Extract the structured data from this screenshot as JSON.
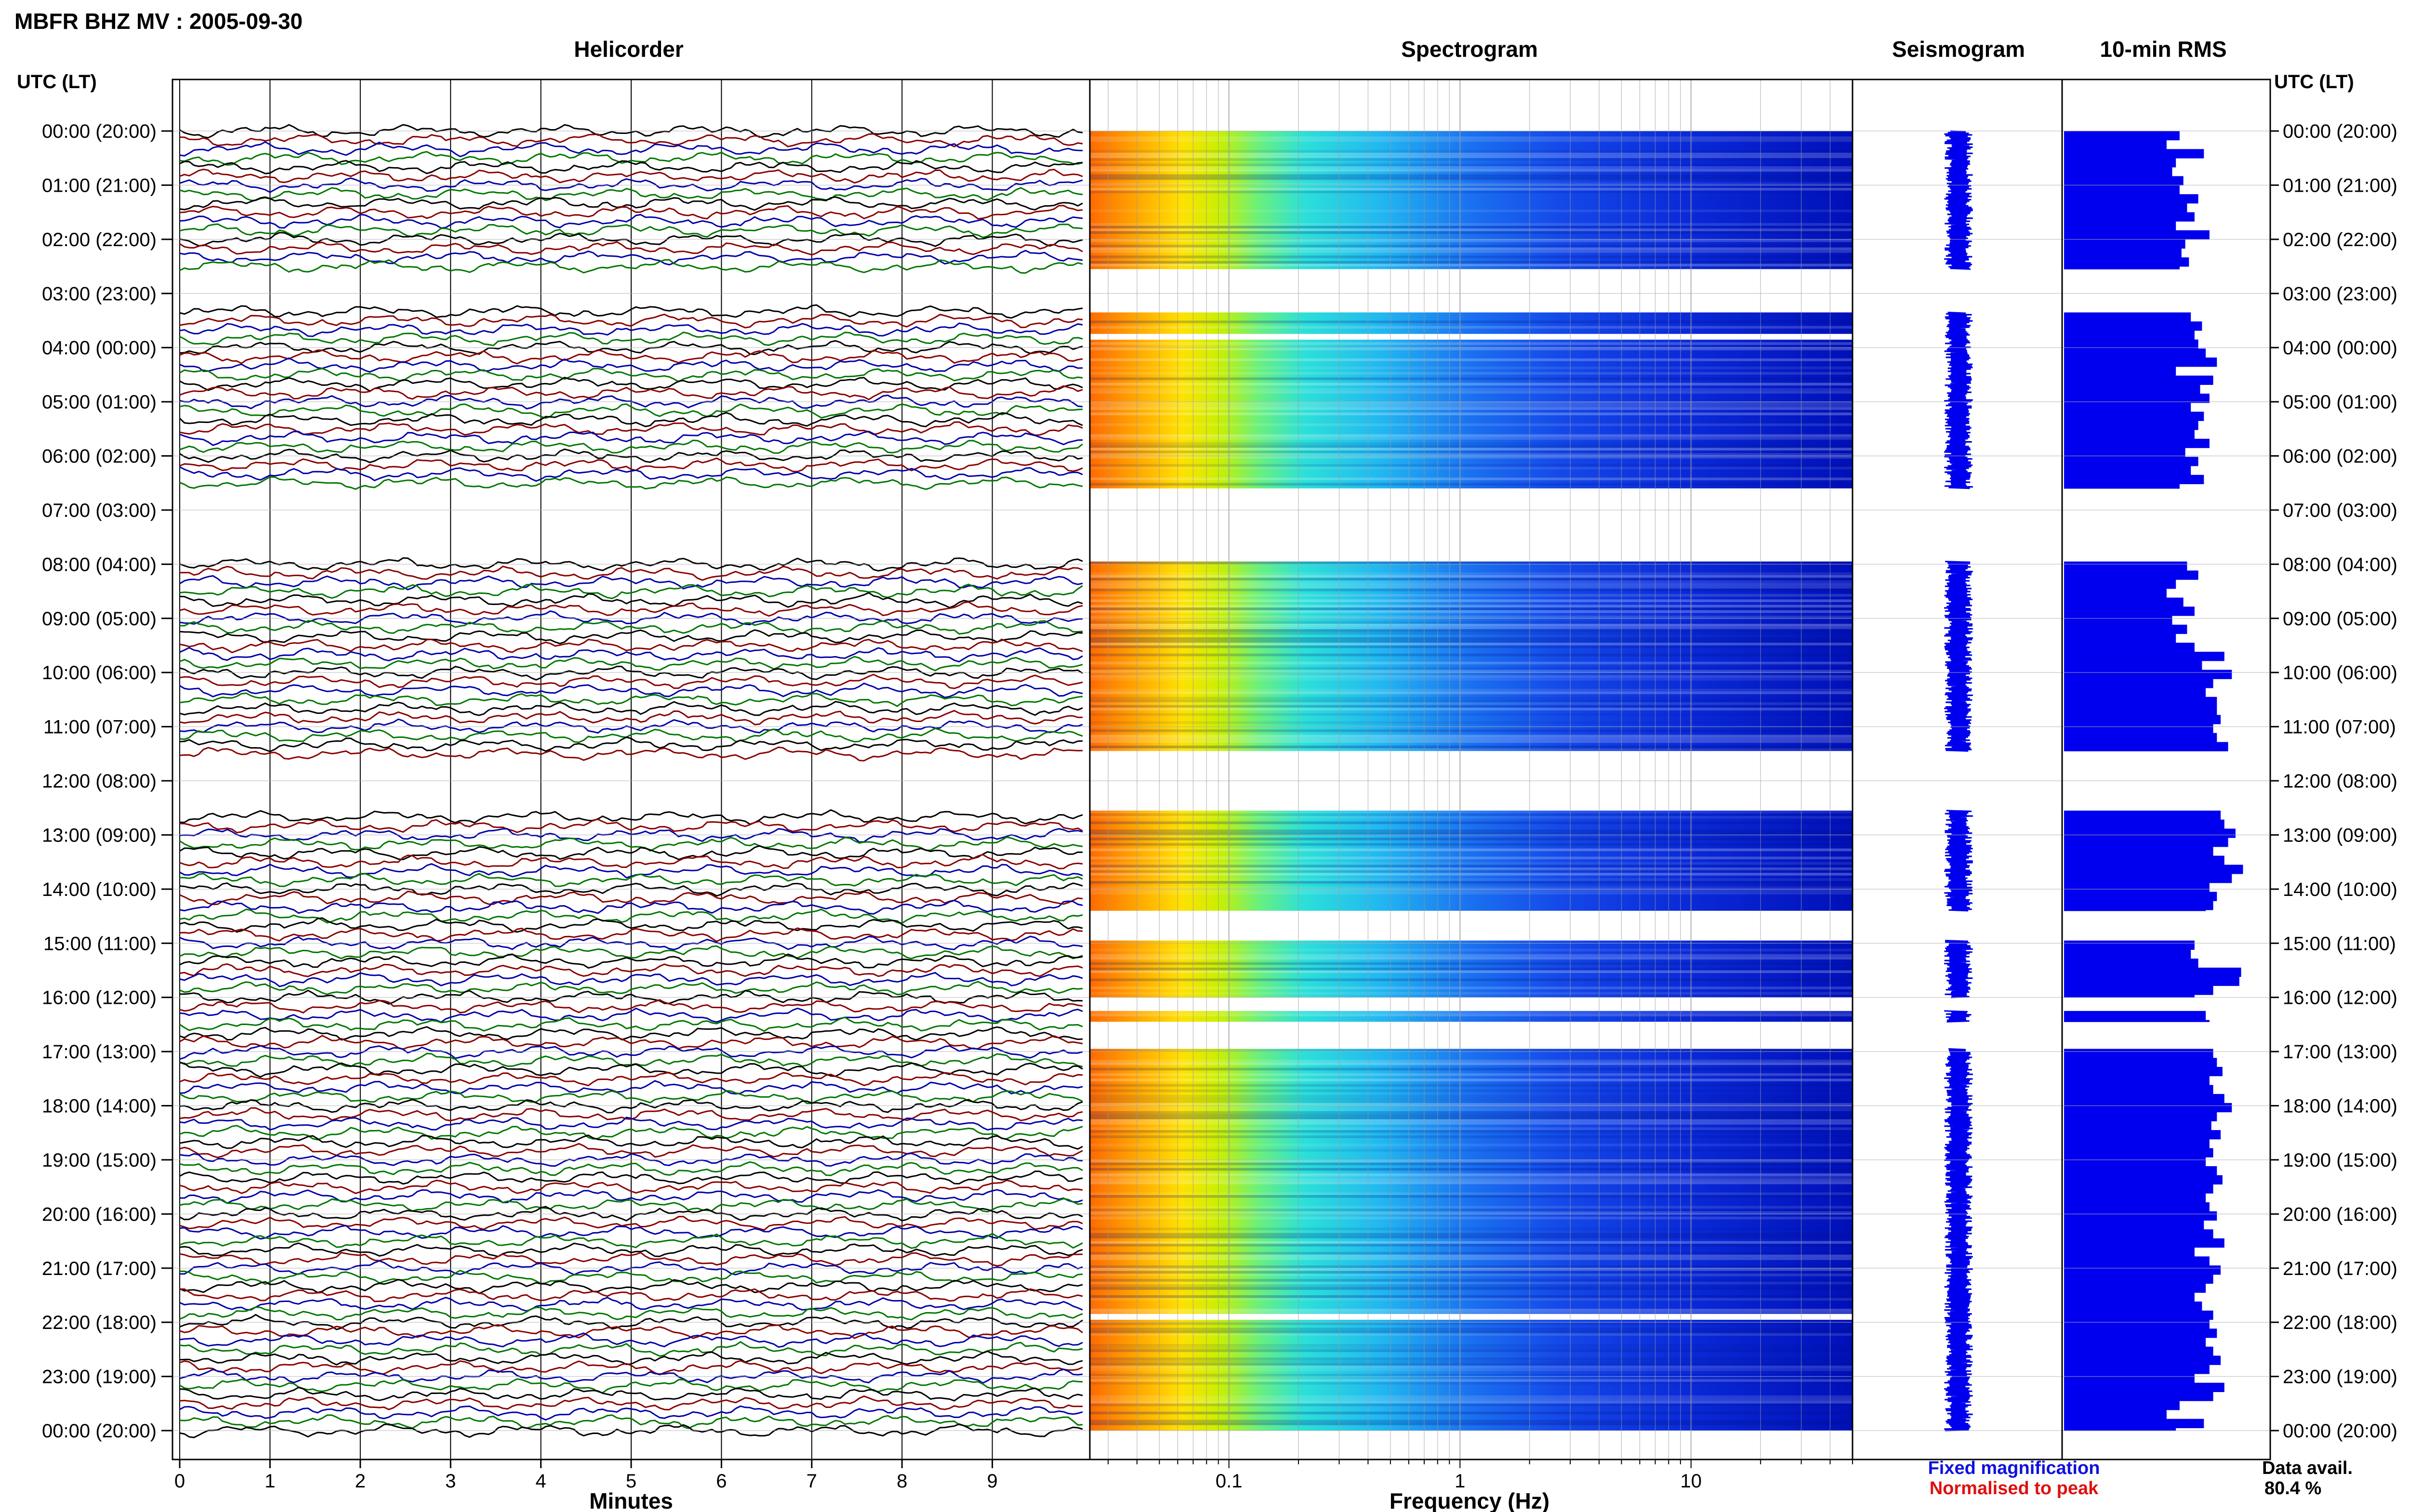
{
  "header": {
    "title": "MBFR BHZ MV : 2005-09-30"
  },
  "panels": {
    "helicorder": "Helicorder",
    "spectrogram": "Spectrogram",
    "seismogram": "Seismogram",
    "rms": "10-min RMS"
  },
  "time_axis": {
    "label_left": "UTC (LT)",
    "label_right": "UTC (LT)",
    "ticks": [
      "00:00 (20:00)",
      "01:00 (21:00)",
      "02:00 (22:00)",
      "03:00 (23:00)",
      "04:00 (00:00)",
      "05:00 (01:00)",
      "06:00 (02:00)",
      "07:00 (03:00)",
      "08:00 (04:00)",
      "09:00 (05:00)",
      "10:00 (06:00)",
      "11:00 (07:00)",
      "12:00 (08:00)",
      "13:00 (09:00)",
      "14:00 (10:00)",
      "15:00 (11:00)",
      "16:00 (12:00)",
      "17:00 (13:00)",
      "18:00 (14:00)",
      "19:00 (15:00)",
      "20:00 (16:00)",
      "21:00 (17:00)",
      "22:00 (18:00)",
      "23:00 (19:00)",
      "00:00 (20:00)"
    ]
  },
  "footer": {
    "xlabel_minutes": "Minutes",
    "xlabel_frequency": "Frequency (Hz)",
    "legend_fixed": "Fixed magnification",
    "legend_normalised": "Normalised to peak",
    "data_avail_label": "Data avail.",
    "data_avail_value": "80.4 %"
  },
  "colors": {
    "fixed": "#1010e0",
    "normalised": "#e01010",
    "rms_bar": "#0000ee",
    "trace_cycle": [
      "#000000",
      "#8b0000",
      "#0000aa",
      "#007700"
    ]
  },
  "chart_data": [
    {
      "type": "line",
      "panel": "helicorder",
      "x_ticks": [
        "0",
        "1",
        "2",
        "3",
        "4",
        "5",
        "6",
        "7",
        "8",
        "9"
      ],
      "xlim": [
        0,
        10
      ],
      "ylim_hours": [
        0,
        24
      ],
      "rows_per_hour": 6,
      "gaps_hours": [
        [
          2.5,
          3.3
        ],
        [
          6.6,
          7.9
        ],
        [
          11.5,
          12.6
        ]
      ]
    },
    {
      "type": "heatmap",
      "panel": "spectrogram",
      "x_scale": "log",
      "x_ticks": [
        "0.1",
        "1",
        "10"
      ],
      "xlim_hz": [
        0.025,
        50
      ],
      "present_hours": [
        [
          0,
          2.55
        ],
        [
          3.35,
          6.6
        ],
        [
          7.95,
          11.45
        ],
        [
          12.55,
          14.4
        ],
        [
          14.95,
          16.0
        ],
        [
          16.25,
          16.45
        ],
        [
          16.95,
          24.0
        ]
      ],
      "white_line_hours": [
        3.8,
        21.9
      ]
    },
    {
      "type": "line",
      "panel": "seismogram",
      "present_hours": [
        [
          0,
          2.55
        ],
        [
          3.35,
          6.6
        ],
        [
          7.95,
          11.45
        ],
        [
          12.55,
          14.4
        ],
        [
          14.95,
          16.0
        ],
        [
          16.25,
          16.45
        ],
        [
          16.95,
          24.0
        ]
      ]
    },
    {
      "type": "bar",
      "panel": "rms",
      "orientation": "horizontal",
      "bin_minutes": 10,
      "present_hours": [
        [
          0,
          2.55
        ],
        [
          3.35,
          6.6
        ],
        [
          7.95,
          11.45
        ],
        [
          12.55,
          14.4
        ],
        [
          14.95,
          16.0
        ],
        [
          16.25,
          16.45
        ],
        [
          16.95,
          24.0
        ]
      ],
      "values_relative": [
        0.62,
        0.55,
        0.75,
        0.6,
        0.58,
        0.64,
        0.62,
        0.72,
        0.66,
        0.7,
        0.6,
        0.78,
        0.65,
        0.63,
        0.67,
        0.62,
        0.68,
        0.74,
        0.7,
        0.72,
        0.76,
        0.82,
        0.6,
        0.8,
        0.73,
        0.78,
        0.68,
        0.75,
        0.72,
        0.7,
        0.78,
        0.65,
        0.72,
        0.68,
        0.75,
        0.62,
        0.66,
        0.72,
        0.6,
        0.55,
        0.64,
        0.7,
        0.58,
        0.66,
        0.6,
        0.7,
        0.86,
        0.74,
        0.9,
        0.8,
        0.76,
        0.82,
        0.82,
        0.84,
        0.8,
        0.82,
        0.88,
        0.84,
        0.86,
        0.92,
        0.88,
        0.8,
        0.86,
        0.96,
        0.9,
        0.78,
        0.82,
        0.8,
        0.76,
        0.7,
        0.68,
        0.72,
        0.95,
        0.94,
        0.8,
        0.7,
        0.76,
        0.78,
        0.8,
        0.82,
        0.85,
        0.78,
        0.8,
        0.86,
        0.9,
        0.82,
        0.79,
        0.84,
        0.78,
        0.8,
        0.76,
        0.82,
        0.85,
        0.8,
        0.76,
        0.78,
        0.82,
        0.75,
        0.8,
        0.86,
        0.7,
        0.78,
        0.84,
        0.8,
        0.76,
        0.7,
        0.74,
        0.8,
        0.78,
        0.82,
        0.76,
        0.8,
        0.84,
        0.78,
        0.7,
        0.86,
        0.8
      ]
    }
  ]
}
